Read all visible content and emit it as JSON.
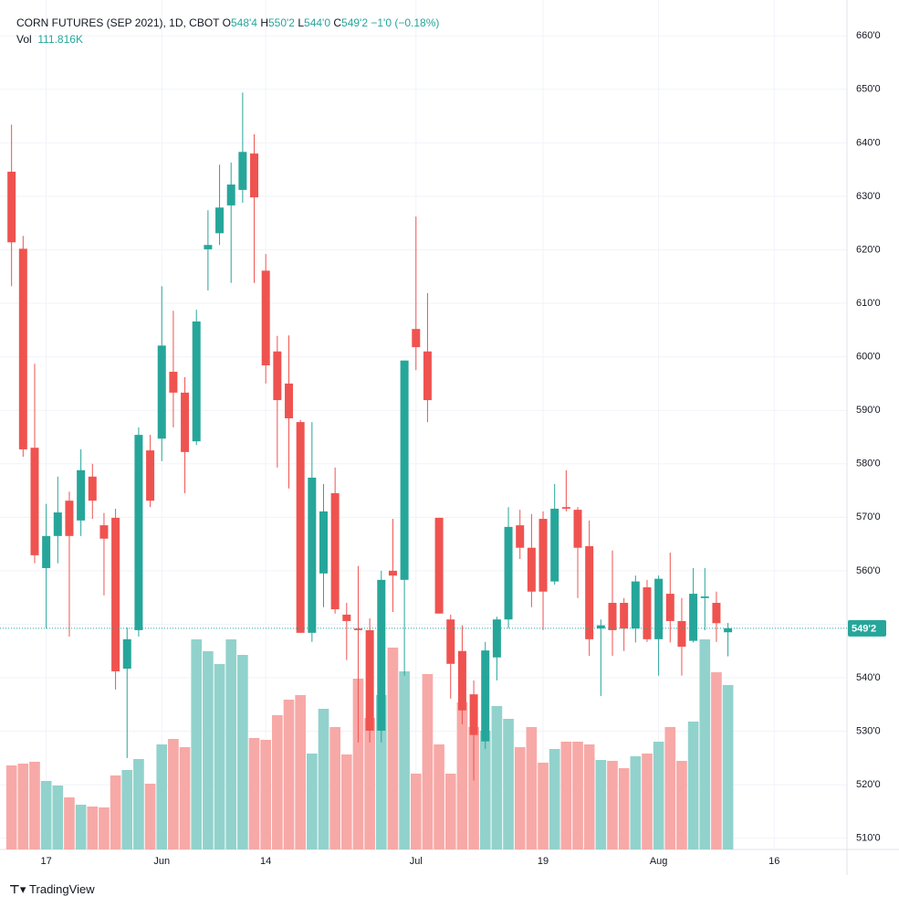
{
  "chart_data": {
    "type": "candlestick",
    "title": "CORN FUTURES (SEP 2021), 1D, CBOT",
    "ohlc_legend": [
      {
        "prefix": "O",
        "value": "548'4"
      },
      {
        "prefix": "H",
        "value": "550'2"
      },
      {
        "prefix": "L",
        "value": "544'0"
      },
      {
        "prefix": "C",
        "value": "549'2"
      }
    ],
    "change_label": "−1'0 (−0.18%)",
    "volume_title": "Vol",
    "volume_value_label": "111.816K",
    "last_price_label": "549'2",
    "brand": "TradingView",
    "up_color": "#26a69a",
    "down_color": "#ef5350",
    "up_volume_color": "#92d2cc",
    "down_volume_color": "#f7a9a7",
    "grid": true,
    "xlim": [
      -1,
      72.3
    ],
    "xticks": [
      {
        "value": 3,
        "label": "17"
      },
      {
        "value": 13,
        "label": "Jun"
      },
      {
        "value": 22,
        "label": "14"
      },
      {
        "value": 35,
        "label": "Jul"
      },
      {
        "value": 46,
        "label": "19"
      },
      {
        "value": 56,
        "label": "Aug"
      },
      {
        "value": 66,
        "label": "16"
      }
    ],
    "ylim": [
      507.9,
      666.7
    ],
    "yticks": [
      {
        "value": 510,
        "label": "510'0"
      },
      {
        "value": 520,
        "label": "520'0"
      },
      {
        "value": 530,
        "label": "530'0"
      },
      {
        "value": 540,
        "label": "540'0"
      },
      {
        "value": 550,
        "label": "550'0"
      },
      {
        "value": 560,
        "label": "560'0"
      },
      {
        "value": 570,
        "label": "570'0"
      },
      {
        "value": 580,
        "label": "580'0"
      },
      {
        "value": 590,
        "label": "590'0"
      },
      {
        "value": 600,
        "label": "600'0"
      },
      {
        "value": 610,
        "label": "610'0"
      },
      {
        "value": 620,
        "label": "620'0"
      },
      {
        "value": 630,
        "label": "630'0"
      },
      {
        "value": 640,
        "label": "640'0"
      },
      {
        "value": 650,
        "label": "650'0"
      },
      {
        "value": 660,
        "label": "660'0"
      }
    ],
    "open": [
      634.6,
      620.2,
      583,
      560.5,
      566.5,
      573.1,
      569.4,
      577.6,
      568.5,
      569.9,
      541.7,
      548.9,
      582.5,
      584.7,
      597.2,
      593.3,
      584.2,
      620.1,
      623.1,
      628.3,
      631.2,
      638,
      616.1,
      601,
      595,
      587.8,
      548.4,
      559.5,
      574.5,
      551.8,
      549.2,
      548.9,
      530.1,
      560,
      558.3,
      605.2,
      601,
      569.9,
      550.9,
      545,
      536.9,
      528.1,
      543.8,
      550.9,
      568.5,
      564.3,
      569.7,
      558,
      571.9,
      571.4,
      564.6,
      549.2,
      554,
      554,
      549.2,
      556.9,
      547.2,
      555.7,
      550.6,
      546.9,
      554.9,
      554,
      548.5
    ],
    "high": [
      643.4,
      622.6,
      598.7,
      572.5,
      577.6,
      574.8,
      582.7,
      580,
      570.8,
      571.6,
      549.4,
      586.8,
      585.4,
      613.2,
      608.6,
      596.2,
      608.8,
      627.4,
      635.9,
      636.3,
      649.4,
      641.6,
      619.2,
      603.9,
      604,
      588.2,
      587.8,
      576.2,
      579.3,
      554,
      560.9,
      551.1,
      560,
      569.7,
      599.3,
      626.2,
      611.9,
      569.9,
      551.8,
      549.8,
      539.5,
      546.7,
      551.4,
      571.9,
      571.4,
      570.6,
      571.1,
      576.2,
      578.8,
      571.9,
      569.4,
      550.9,
      563.8,
      554.9,
      559.1,
      558.3,
      559.1,
      563.4,
      554.9,
      560.5,
      560.5,
      556.1,
      550.25
    ],
    "low": [
      613.2,
      581.3,
      561.4,
      549.2,
      561.4,
      547.7,
      566.5,
      569.7,
      555.4,
      537.8,
      525,
      547.7,
      571.9,
      580.5,
      586.8,
      574.5,
      583.5,
      612.4,
      620.9,
      613.8,
      628.8,
      613.8,
      595,
      579.3,
      575.4,
      548.4,
      546.7,
      553.2,
      552,
      543.3,
      527.9,
      527.9,
      527.9,
      552.3,
      540.4,
      597.5,
      587.8,
      552,
      536.1,
      531.3,
      520.8,
      526.7,
      539.5,
      549.2,
      562.2,
      553.2,
      548.9,
      557.4,
      571.1,
      554.9,
      544.1,
      536.6,
      544.1,
      545,
      546.6,
      546.7,
      540.4,
      546.6,
      540.4,
      546.6,
      548.9,
      546.7,
      544
    ],
    "close": [
      621.4,
      582.7,
      562.9,
      566.5,
      570.9,
      566.5,
      578.8,
      573.1,
      566,
      541.2,
      547.2,
      585.4,
      573.1,
      602.1,
      593.3,
      582.2,
      606.6,
      620.9,
      627.9,
      632.2,
      638.3,
      629.8,
      598.4,
      591.9,
      588.5,
      548.4,
      577.4,
      571.1,
      552.8,
      550.6,
      548.9,
      530.1,
      558.3,
      559.1,
      599.3,
      601.8,
      591.9,
      552,
      542.6,
      533.9,
      529.3,
      545.1,
      550.9,
      568.2,
      564.3,
      556.1,
      556.1,
      571.6,
      571.6,
      564.3,
      547.2,
      549.8,
      548.9,
      549.2,
      558,
      547.2,
      558.5,
      550.6,
      545.8,
      555.7,
      555.2,
      550.2,
      549.25
    ],
    "volume": [
      57132,
      58374,
      59616,
      46575,
      43470,
      35397,
      30429,
      29187,
      28566,
      50301,
      54027,
      61479,
      44712,
      71415,
      75141,
      69552,
      142830,
      134757,
      126063,
      142830,
      132273,
      75762,
      74520,
      91287,
      101844,
      104949,
      65205,
      95634,
      83214,
      64584,
      116127,
      89424,
      104949,
      137241,
      121095,
      51543,
      119232,
      71415,
      51543,
      99981,
      83214,
      80730,
      97497,
      88803,
      69552,
      83214,
      58995,
      68310,
      73278,
      73278,
      71415,
      60858,
      60237,
      55269,
      63342,
      65205,
      73278,
      83214,
      60237,
      86940,
      142830,
      120474,
      111816
    ]
  }
}
